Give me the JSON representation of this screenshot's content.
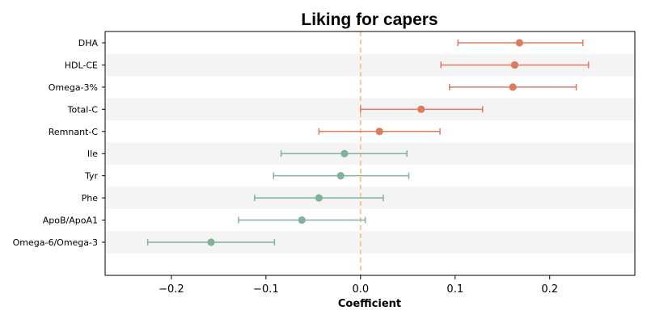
{
  "chart_data": {
    "type": "forest",
    "title": "Liking for capers",
    "xlabel": "Coefficient",
    "ylabel": "",
    "xlim": [
      -0.27,
      0.29
    ],
    "xticks": [
      -0.2,
      -0.1,
      0.0,
      0.1,
      0.2
    ],
    "xtick_labels": [
      "−0.2",
      "−0.1",
      "0.0",
      "0.1",
      "0.2"
    ],
    "reference_line": 0,
    "reference_line_color": "#f5c07a",
    "positive_color": "#e07a5f",
    "negative_color": "#81b29a",
    "band_color": "#f4f4f4",
    "rows": [
      {
        "label": "DHA",
        "estimate": 0.168,
        "ci_low": 0.103,
        "ci_high": 0.235
      },
      {
        "label": "HDL-CE",
        "estimate": 0.163,
        "ci_low": 0.085,
        "ci_high": 0.241
      },
      {
        "label": "Omega-3%",
        "estimate": 0.161,
        "ci_low": 0.094,
        "ci_high": 0.228
      },
      {
        "label": "Total-C",
        "estimate": 0.064,
        "ci_low": 0.0,
        "ci_high": 0.129
      },
      {
        "label": "Remnant-C",
        "estimate": 0.02,
        "ci_low": -0.044,
        "ci_high": 0.084
      },
      {
        "label": "Ile",
        "estimate": -0.017,
        "ci_low": -0.084,
        "ci_high": 0.049
      },
      {
        "label": "Tyr",
        "estimate": -0.021,
        "ci_low": -0.092,
        "ci_high": 0.051
      },
      {
        "label": "Phe",
        "estimate": -0.044,
        "ci_low": -0.112,
        "ci_high": 0.024
      },
      {
        "label": "ApoB/ApoA1",
        "estimate": -0.062,
        "ci_low": -0.129,
        "ci_high": 0.005
      },
      {
        "label": "Omega-6/Omega-3",
        "estimate": -0.158,
        "ci_low": -0.225,
        "ci_high": -0.091
      }
    ]
  }
}
